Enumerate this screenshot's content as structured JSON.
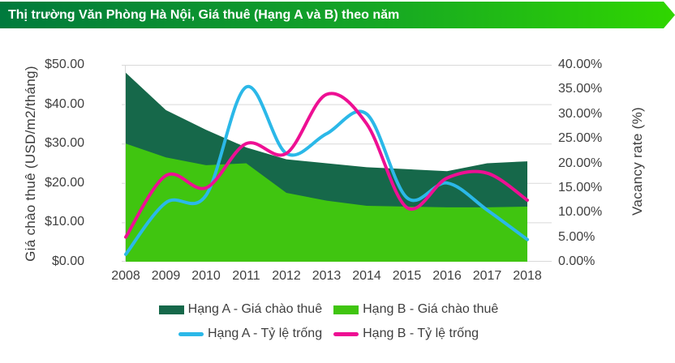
{
  "banner": {
    "title": "Thị trường Văn Phòng Hà Nội, Giá thuê (Hạng A và B) theo năm",
    "gradient_start": "#007a3d",
    "gradient_end": "#30d600"
  },
  "chart_data": {
    "type": "area+line combo",
    "categories": [
      "2008",
      "2009",
      "2010",
      "2011",
      "2012",
      "2013",
      "2014",
      "2015",
      "2016",
      "2017",
      "2018"
    ],
    "series": [
      {
        "name": "Hạng A - Giá chào thuê",
        "type": "area",
        "axis": "left",
        "color": "#16684a",
        "values": [
          48,
          38.5,
          33.5,
          29,
          26,
          25,
          24,
          23.5,
          23,
          25,
          25.5
        ]
      },
      {
        "name": "Hạng B - Giá chào thuê",
        "type": "area",
        "axis": "left",
        "color": "#40c510",
        "values": [
          30,
          26.5,
          24.5,
          25,
          17.5,
          15.5,
          14.2,
          14,
          13.8,
          13.8,
          14
        ]
      },
      {
        "name": "Hạng A - Tỷ lệ trống",
        "type": "line",
        "axis": "right",
        "color": "#2bb8e8",
        "values": [
          1.5,
          12,
          13.5,
          35.5,
          22,
          26,
          30,
          13,
          16,
          10.5,
          4.5
        ]
      },
      {
        "name": "Hạng B - Tỷ lệ trống",
        "type": "line",
        "axis": "right",
        "color": "#ee0f93",
        "values": [
          5,
          17.5,
          15,
          24,
          22,
          34,
          28,
          11,
          17,
          18,
          12.5
        ]
      }
    ],
    "left_axis": {
      "title": "Giá chào thuê (USD/m2/tháng)",
      "min": 0,
      "max": 50,
      "tick_step": 10,
      "ticks": [
        "$0.00",
        "$10.00",
        "$20.00",
        "$30.00",
        "$40.00",
        "$50.00"
      ]
    },
    "right_axis": {
      "title": "Vacancy rate (%)",
      "min": 0,
      "max": 40,
      "tick_step": 5,
      "ticks": [
        "0.00%",
        "5.00%",
        "10.00%",
        "15.00%",
        "20.00%",
        "25.00%",
        "30.00%",
        "35.00%",
        "40.00%"
      ]
    },
    "grid": true,
    "gridline_color": "#d9d9d9",
    "legend_position": "bottom"
  }
}
